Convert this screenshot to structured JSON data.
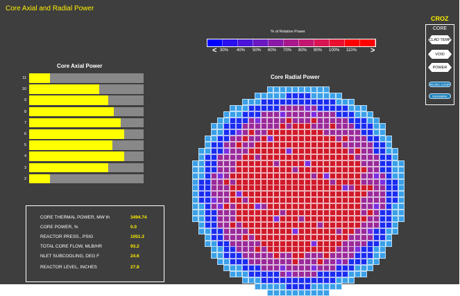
{
  "title": "Core Axial and Radial Power",
  "sidebar": {
    "croz": "CROZ",
    "core_label": "CORE",
    "buttons": [
      {
        "label": "CLAD TEMP",
        "name": "clad-temp-button"
      },
      {
        "label": "VOID",
        "name": "void-button"
      },
      {
        "label": "POWER",
        "name": "power-button"
      }
    ],
    "pills": [
      {
        "label": "RCIRC LOOP",
        "name": "rcirc-loop-button"
      },
      {
        "label": "NSSSBRK",
        "name": "nsssbrk-button"
      }
    ]
  },
  "legend": {
    "title": "% of Relative Power",
    "labels": [
      "30%",
      "40%",
      "50%",
      "60%",
      "70%",
      "80%",
      "90%",
      "100%",
      "110%"
    ],
    "left_arrow": "<",
    "right_arrow": ">",
    "colors": [
      "#0000ff",
      "#2a10ee",
      "#4a15d8",
      "#6a18c0",
      "#8a18a8",
      "#a8188c",
      "#c21670",
      "#d81452",
      "#ea1030",
      "#ff0000",
      "#ff0000"
    ]
  },
  "axial": {
    "title": "Core Axial Power",
    "rows": [
      {
        "label": "11",
        "value": 0.18
      },
      {
        "label": "10",
        "value": 0.61
      },
      {
        "label": "9",
        "value": 0.69
      },
      {
        "label": "8",
        "value": 0.74
      },
      {
        "label": "7",
        "value": 0.8
      },
      {
        "label": "6",
        "value": 0.83
      },
      {
        "label": "5",
        "value": 0.73
      },
      {
        "label": "4",
        "value": 0.83
      },
      {
        "label": "3",
        "value": 0.69
      },
      {
        "label": "2",
        "value": 0.18
      }
    ]
  },
  "radial": {
    "title": "Core Radial Power",
    "colors": {
      "outer": "#3aa0e8",
      "blue": "#1a2cf0",
      "violet": "#7a30e0",
      "purple": "#9a2a9a",
      "red": "#d01a2a"
    }
  },
  "info": [
    {
      "label": "CORE THERMAL POWER, MW th",
      "value": "3494.74"
    },
    {
      "label": "CORE  POWER, %",
      "value": "0.0"
    },
    {
      "label": "REACTOR PRESS., PSIG",
      "value": "1051.3"
    },
    {
      "label": "TOTAL CORE FLOW, MLB/HR",
      "value": "93.2"
    },
    {
      "label": "NLET SUBCOOLING, DEG F",
      "value": "24.6"
    },
    {
      "label": "REACTOR LEVEL, INCHES",
      "value": "27.8"
    }
  ]
}
